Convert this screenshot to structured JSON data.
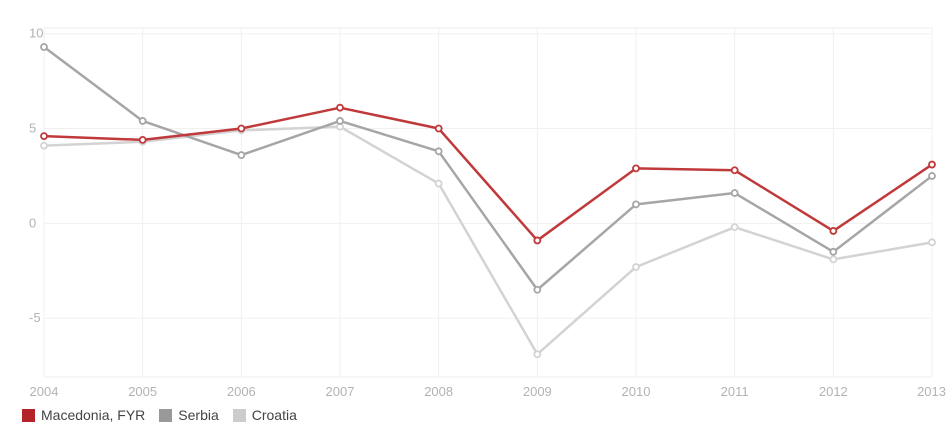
{
  "chart_data": {
    "type": "line",
    "title": "",
    "xlabel": "",
    "ylabel": "",
    "x": [
      "2004",
      "2005",
      "2006",
      "2007",
      "2008",
      "2009",
      "2010",
      "2011",
      "2012",
      "2013"
    ],
    "yticks": [
      "10",
      "5",
      "0",
      "-5"
    ],
    "ylim": [
      -8.1,
      10.3
    ],
    "grid": true,
    "legend_position": "bottom-left",
    "series": [
      {
        "name": "Croatia",
        "color": "#d3d3d3",
        "values": [
          4.1,
          4.3,
          4.9,
          5.1,
          2.1,
          -6.9,
          -2.3,
          -0.2,
          -1.9,
          -1.0
        ]
      },
      {
        "name": "Serbia",
        "color": "#a6a6a6",
        "values": [
          9.3,
          5.4,
          3.6,
          5.4,
          3.8,
          -3.5,
          1.0,
          1.6,
          -1.5,
          2.5
        ]
      },
      {
        "name": "Macedonia, FYR",
        "color": "#c0393b",
        "values": [
          4.6,
          4.4,
          5.0,
          6.1,
          5.0,
          -0.9,
          2.9,
          2.8,
          -0.4,
          3.1
        ]
      }
    ]
  },
  "legend": {
    "items": [
      {
        "label": "Macedonia, FYR",
        "color": "#b22428"
      },
      {
        "label": "Serbia",
        "color": "#999999"
      },
      {
        "label": "Croatia",
        "color": "#cccccc"
      }
    ]
  }
}
